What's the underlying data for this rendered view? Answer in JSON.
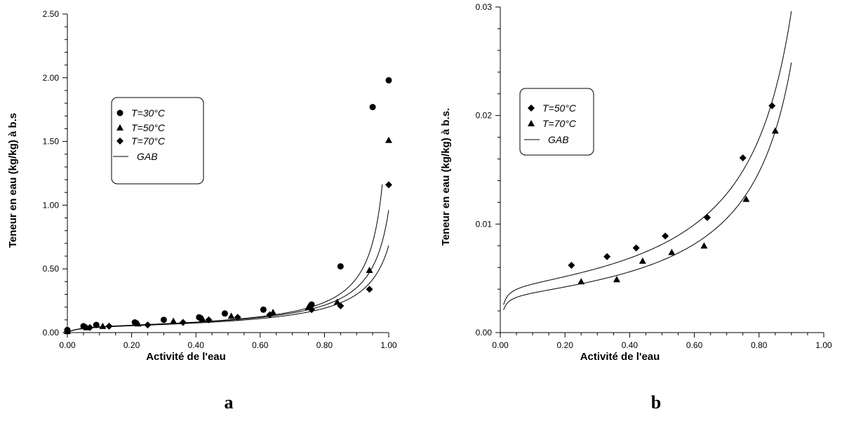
{
  "chart_data": [
    {
      "type": "scatter",
      "panel_label": "a",
      "xlabel": "Activité de l'eau",
      "ylabel": "Teneur en eau (kg/kg) à b.s",
      "xlim": [
        0,
        1
      ],
      "ylim": [
        0,
        2.5
      ],
      "xticks": [
        0,
        0.2,
        0.4,
        0.6,
        0.8,
        1.0
      ],
      "xtick_labels": [
        "0.00",
        "0.20",
        "0.40",
        "0.60",
        "0.80",
        "1.00"
      ],
      "yticks": [
        0,
        0.5,
        1.0,
        1.5,
        2.0,
        2.5
      ],
      "ytick_labels": [
        "0.00",
        "0.50",
        "1.00",
        "1.50",
        "2.00",
        "2.50"
      ],
      "grid": false,
      "legend_position": "upper-left",
      "series": [
        {
          "name": "T=30°C",
          "marker": "circle",
          "points": [
            [
              0.0,
              0.02
            ],
            [
              0.05,
              0.05
            ],
            [
              0.09,
              0.06
            ],
            [
              0.21,
              0.08
            ],
            [
              0.3,
              0.1
            ],
            [
              0.41,
              0.12
            ],
            [
              0.49,
              0.15
            ],
            [
              0.61,
              0.18
            ],
            [
              0.76,
              0.22
            ],
            [
              0.85,
              0.52
            ],
            [
              0.95,
              1.77
            ],
            [
              1.0,
              1.98
            ]
          ]
        },
        {
          "name": "T=50°C",
          "marker": "triangle",
          "points": [
            [
              0.0,
              0.01
            ],
            [
              0.06,
              0.04
            ],
            [
              0.11,
              0.05
            ],
            [
              0.22,
              0.07
            ],
            [
              0.33,
              0.09
            ],
            [
              0.42,
              0.11
            ],
            [
              0.51,
              0.13
            ],
            [
              0.64,
              0.16
            ],
            [
              0.75,
              0.2
            ],
            [
              0.84,
              0.24
            ],
            [
              0.94,
              0.49
            ],
            [
              1.0,
              1.51
            ]
          ]
        },
        {
          "name": "T=70°C",
          "marker": "diamond",
          "points": [
            [
              0.0,
              0.01
            ],
            [
              0.07,
              0.04
            ],
            [
              0.13,
              0.05
            ],
            [
              0.25,
              0.06
            ],
            [
              0.36,
              0.08
            ],
            [
              0.44,
              0.1
            ],
            [
              0.53,
              0.12
            ],
            [
              0.63,
              0.14
            ],
            [
              0.76,
              0.18
            ],
            [
              0.85,
              0.21
            ],
            [
              0.94,
              0.34
            ],
            [
              1.0,
              1.16
            ]
          ]
        }
      ],
      "fit_label": "GAB",
      "fit_curves": [
        {
          "Xm": 0.053,
          "C": 30,
          "K": 0.974,
          "x_end": 0.98
        },
        {
          "Xm": 0.053,
          "C": 30,
          "K": 0.945,
          "x_end": 1.0
        },
        {
          "Xm": 0.05,
          "C": 30,
          "K": 0.927,
          "x_end": 1.0
        }
      ]
    },
    {
      "type": "scatter",
      "panel_label": "b",
      "xlabel": "Activité de l'eau",
      "ylabel": "Teneur en eau (kg/kg) à b.s.",
      "xlim": [
        0,
        1
      ],
      "ylim": [
        0,
        0.03
      ],
      "xticks": [
        0,
        0.2,
        0.4,
        0.6,
        0.8,
        1.0
      ],
      "xtick_labels": [
        "0.00",
        "0.20",
        "0.40",
        "0.60",
        "0.80",
        "1.00"
      ],
      "yticks": [
        0,
        0.01,
        0.02,
        0.03
      ],
      "ytick_labels": [
        "0.00",
        "0.01",
        "0.02",
        "0.03"
      ],
      "grid": false,
      "legend_position": "upper-left",
      "series": [
        {
          "name": "T=50°C",
          "marker": "diamond",
          "points": [
            [
              0.22,
              0.0062
            ],
            [
              0.33,
              0.007
            ],
            [
              0.42,
              0.0078
            ],
            [
              0.51,
              0.0089
            ],
            [
              0.64,
              0.0106
            ],
            [
              0.75,
              0.0161
            ],
            [
              0.84,
              0.0209
            ]
          ]
        },
        {
          "name": "T=70°C",
          "marker": "triangle",
          "points": [
            [
              0.25,
              0.0047
            ],
            [
              0.36,
              0.0049
            ],
            [
              0.44,
              0.0066
            ],
            [
              0.53,
              0.0074
            ],
            [
              0.63,
              0.008
            ],
            [
              0.76,
              0.0123
            ],
            [
              0.85,
              0.0186
            ]
          ]
        }
      ],
      "fit_label": "GAB",
      "fit_curves": [
        {
          "Xm": 0.0043,
          "C": 150,
          "K": 0.95,
          "x_start": 0.01,
          "x_end": 0.9
        },
        {
          "Xm": 0.0035,
          "C": 150,
          "K": 0.955,
          "x_start": 0.01,
          "x_end": 0.9
        }
      ]
    }
  ]
}
